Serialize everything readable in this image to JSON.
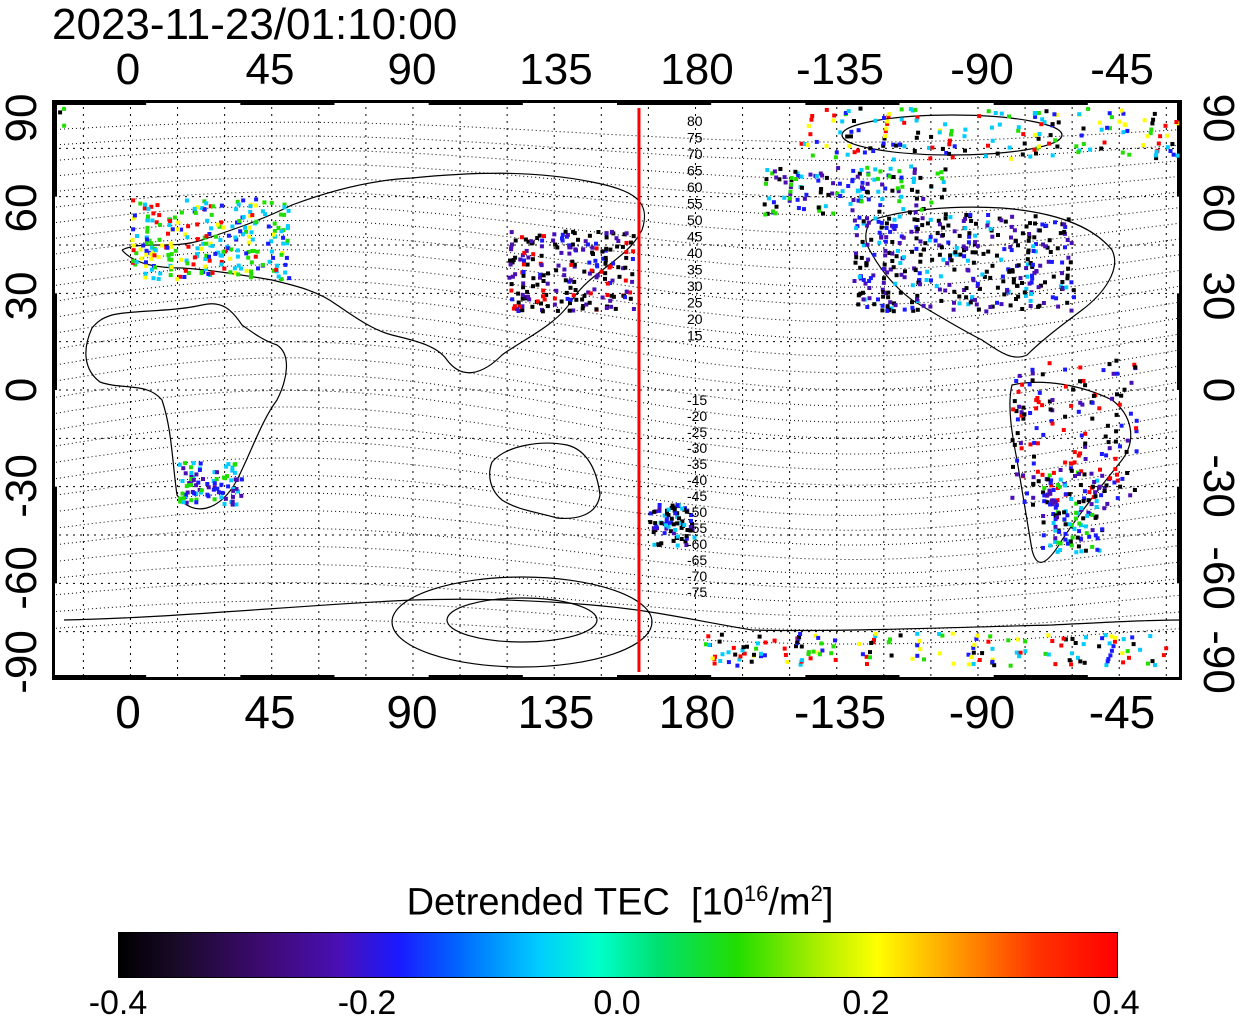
{
  "header": {
    "timestamp": "2023-11-23/01:10:00"
  },
  "axes": {
    "lon_ticks": [
      "0",
      "45",
      "90",
      "135",
      "180",
      "-135",
      "-90",
      "-45"
    ],
    "lat_ticks": [
      "90",
      "60",
      "30",
      "0",
      "-30",
      "-60",
      "-90"
    ]
  },
  "contour_labels": {
    "north": [
      "80",
      "75",
      "70",
      "65",
      "60",
      "55",
      "50",
      "45",
      "40",
      "35",
      "30",
      "25",
      "20",
      "15"
    ],
    "south": [
      "-15",
      "-20",
      "-25",
      "-30",
      "-35",
      "-40",
      "-45",
      "-50",
      "-55",
      "-60",
      "-65",
      "-70",
      "-75"
    ]
  },
  "colorbar": {
    "title": "Detrended TEC",
    "unit_base": "[10",
    "unit_exp": "16",
    "unit_mid": "/m",
    "unit_exp2": "2",
    "unit_end": "]",
    "min": -0.4,
    "max": 0.4,
    "ticks": [
      "-0.4",
      "-0.2",
      "0.0",
      "0.2",
      "0.4"
    ],
    "colors": [
      "#000000",
      "#4a0fb4",
      "#1a1aff",
      "#00ccff",
      "#22dd00",
      "#ffff00",
      "#ff0000"
    ]
  },
  "map": {
    "lon_range": [
      -25,
      335
    ],
    "lat_range": [
      -90,
      90
    ],
    "terminator_longitude": 162,
    "terminator_color": "#ff0000",
    "grid": true
  }
}
